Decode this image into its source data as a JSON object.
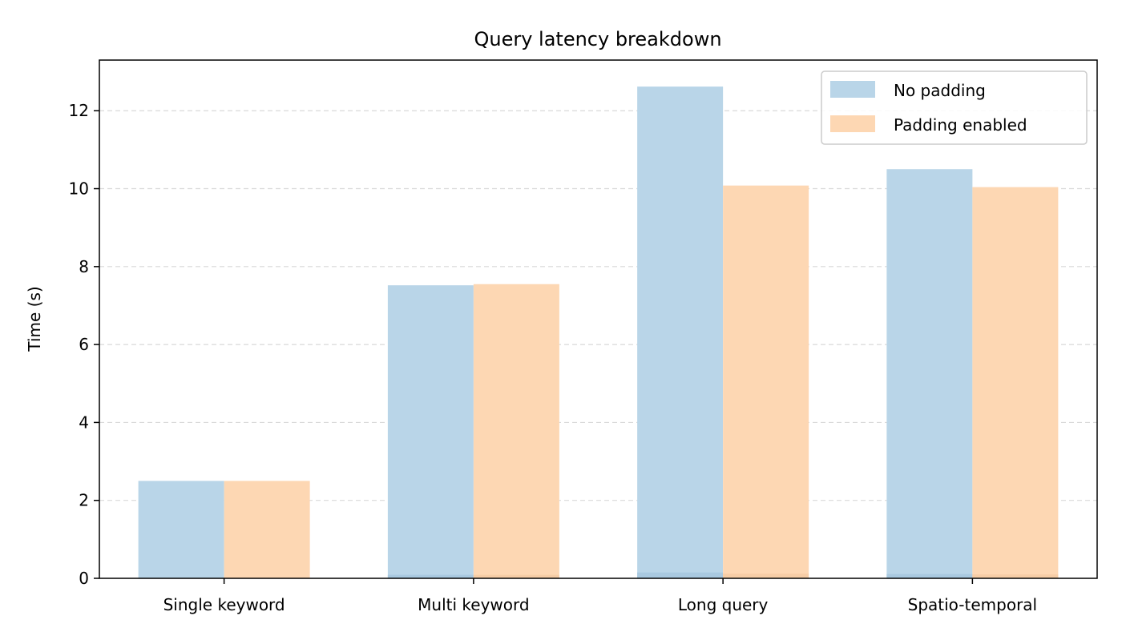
{
  "chart_data": {
    "type": "bar",
    "title": "Query latency breakdown",
    "xlabel": "",
    "ylabel": "Time (s)",
    "categories": [
      "Single keyword",
      "Multi keyword",
      "Long query",
      "Spatio-temporal"
    ],
    "series": [
      {
        "name": "No padding",
        "values": [
          2.5,
          7.52,
          12.62,
          10.5
        ],
        "base_segment_values": [
          0.0,
          0.09,
          0.15,
          0.11
        ],
        "color": "#b9d5e8",
        "base_color": "#a9c9e0"
      },
      {
        "name": "Padding enabled",
        "values": [
          2.5,
          7.55,
          10.08,
          10.04
        ],
        "base_segment_values": [
          0.0,
          0.09,
          0.12,
          0.1
        ],
        "color": "#fdd7b3",
        "base_color": "#f6cda6"
      }
    ],
    "ylim": [
      0,
      13.3
    ],
    "yticks": [
      0,
      2,
      4,
      6,
      8,
      10,
      12
    ],
    "grid": "horizontal dashed",
    "legend_position": "top-right"
  }
}
